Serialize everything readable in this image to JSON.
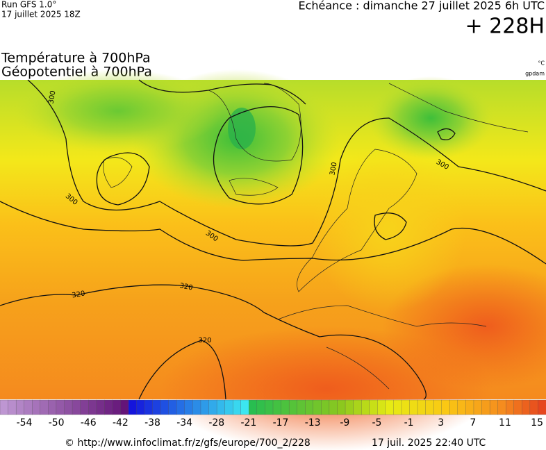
{
  "header": {
    "run": "Run GFS 1.0°",
    "run_date": "17 juillet 2025 18Z",
    "valid": "Echéance : dimanche 27 juillet 2025 6h UTC",
    "lead": "+ 228H"
  },
  "titles": {
    "temperature": "Température à 700hPa",
    "geopotential": "Géopotentiel à 700hPa",
    "temp_unit": "°C",
    "geo_unit": "gpdam"
  },
  "contour_labels": [
    "300",
    "300",
    "300",
    "300",
    "300",
    "320",
    "320",
    "320"
  ],
  "legend": {
    "ticks": [
      -54,
      -50,
      -46,
      -42,
      -38,
      -34,
      -28,
      -21,
      -17,
      -13,
      -9,
      -5,
      -1,
      3,
      7,
      11,
      15
    ]
  },
  "footer": {
    "source": "© http://www.infoclimat.fr/z/gfs/europe/700_2/228",
    "generated": "17 juil. 2025 22:40 UTC"
  }
}
